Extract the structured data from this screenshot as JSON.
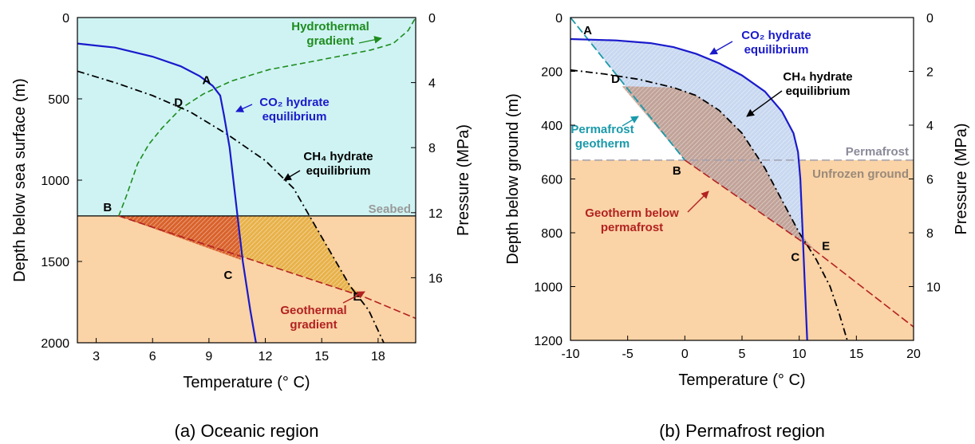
{
  "chart_data": [
    {
      "id": "oceanic",
      "type": "line",
      "caption": "(a) Oceanic region",
      "xlabel": "Temperature (° C)",
      "ylabel": "Depth below sea surface (m)",
      "y2label": "Pressure (MPa)",
      "xlim": [
        2,
        20
      ],
      "ylim": [
        2000,
        0
      ],
      "y2lim": [
        20,
        0
      ],
      "xticks": [
        "3",
        "6",
        "9",
        "12",
        "15",
        "18"
      ],
      "xtick_values": [
        3,
        6,
        9,
        12,
        15,
        18
      ],
      "yticks": [
        "0",
        "500",
        "1000",
        "1500",
        "2000"
      ],
      "ytick_values": [
        0,
        500,
        1000,
        1500,
        2000
      ],
      "y2ticks": [
        "0",
        "4",
        "8",
        "12",
        "16"
      ],
      "y2tick_values": [
        0,
        4,
        8,
        12,
        16
      ],
      "colors": {
        "water": "#cff3f3",
        "sediment": "#fad3a6",
        "co2": "#1a1acc",
        "ch4": "#000000",
        "hydrothermal": "#1e8c1e",
        "geothermal": "#b22222",
        "shade_outer": "#e8b24a",
        "shade_inner": "#d9622b"
      },
      "seabed_depth": 1220,
      "seabed_label": "Seabed",
      "series": [
        {
          "key": "co2",
          "name": "CO₂ hydrate equilibrium",
          "points": [
            [
              2,
              160
            ],
            [
              4,
              185
            ],
            [
              6,
              240
            ],
            [
              7.5,
              300
            ],
            [
              8.5,
              360
            ],
            [
              9.2,
              420
            ],
            [
              9.6,
              480
            ],
            [
              9.8,
              600
            ],
            [
              10.1,
              800
            ],
            [
              10.5,
              1200
            ],
            [
              10.8,
              1500
            ],
            [
              11.2,
              1800
            ],
            [
              11.5,
              2000
            ]
          ]
        },
        {
          "key": "ch4",
          "name": "CH₄ hydrate equilibrium",
          "points": [
            [
              2,
              330
            ],
            [
              4,
              400
            ],
            [
              6,
              480
            ],
            [
              8,
              580
            ],
            [
              10,
              720
            ],
            [
              12,
              880
            ],
            [
              13.5,
              1050
            ],
            [
              14.5,
              1250
            ],
            [
              15.5,
              1450
            ],
            [
              16.5,
              1650
            ],
            [
              17.5,
              1800
            ],
            [
              18.3,
              2000
            ]
          ]
        },
        {
          "key": "hydrothermal",
          "name": "Hydrothermal gradient",
          "points": [
            [
              4.2,
              1220
            ],
            [
              4.6,
              1100
            ],
            [
              5.2,
              900
            ],
            [
              5.8,
              780
            ],
            [
              6.5,
              680
            ],
            [
              7.5,
              560
            ],
            [
              8.7,
              470
            ],
            [
              10.2,
              390
            ],
            [
              12.2,
              320
            ],
            [
              14.5,
              270
            ],
            [
              16.3,
              230
            ],
            [
              17.6,
              200
            ],
            [
              18.8,
              160
            ],
            [
              19.6,
              80
            ],
            [
              20,
              0
            ]
          ]
        },
        {
          "key": "geothermal",
          "name": "Geothermal gradient",
          "points": [
            [
              4.2,
              1220
            ],
            [
              17.3,
              1720
            ],
            [
              20,
              1850
            ]
          ]
        }
      ],
      "points": [
        {
          "label": "A",
          "x": 9.3,
          "y": 430
        },
        {
          "label": "B",
          "x": 4.2,
          "y": 1220
        },
        {
          "label": "C",
          "x": 10.7,
          "y": 1490
        },
        {
          "label": "D",
          "x": 7.8,
          "y": 575
        },
        {
          "label": "E",
          "x": 17.3,
          "y": 1720
        }
      ],
      "annotations": {
        "hydrothermal": "Hydrothermal\ngradient",
        "co2": "CO₂ hydrate\nequilibrium",
        "ch4": "CH₄ hydrate\nequilibrium",
        "geothermal": "Geothermal\ngradient"
      }
    },
    {
      "id": "permafrost",
      "type": "line",
      "caption": "(b) Permafrost region",
      "xlabel": "Temperature (° C)",
      "ylabel": "Depth below ground (m)",
      "y2label": "Pressure (MPa)",
      "xlim": [
        -10,
        20
      ],
      "ylim": [
        1200,
        0
      ],
      "y2lim": [
        12,
        0
      ],
      "xticks": [
        "-10",
        "-5",
        "0",
        "5",
        "10",
        "15",
        "20"
      ],
      "xtick_values": [
        -10,
        -5,
        0,
        5,
        10,
        15,
        20
      ],
      "yticks": [
        "0",
        "200",
        "400",
        "600",
        "800",
        "1000",
        "1200"
      ],
      "ytick_values": [
        0,
        200,
        400,
        600,
        800,
        1000,
        1200
      ],
      "y2ticks": [
        "0",
        "2",
        "4",
        "6",
        "8",
        "10"
      ],
      "y2tick_values": [
        0,
        2,
        4,
        6,
        8,
        10
      ],
      "colors": {
        "sediment": "#fad3a6",
        "co2": "#1a1acc",
        "ch4": "#000000",
        "permafrost_geotherm": "#1a9aaa",
        "geotherm": "#b22222",
        "boundary": "#a0a0b0",
        "shade_blue": "#c8d8f0",
        "shade_brown": "#c09a8a"
      },
      "permafrost_base": 530,
      "permafrost_label": "Permafrost",
      "unfrozen_label": "Unfrozen ground",
      "series": [
        {
          "key": "co2",
          "name": "CO₂ hydrate equilibrium",
          "points": [
            [
              -10,
              80
            ],
            [
              -6,
              85
            ],
            [
              -3,
              95
            ],
            [
              -1,
              110
            ],
            [
              1,
              135
            ],
            [
              3,
              170
            ],
            [
              5,
              215
            ],
            [
              7,
              275
            ],
            [
              8.5,
              350
            ],
            [
              9.5,
              430
            ],
            [
              9.9,
              500
            ],
            [
              10.1,
              600
            ],
            [
              10.3,
              800
            ],
            [
              10.5,
              1000
            ],
            [
              10.7,
              1200
            ]
          ]
        },
        {
          "key": "ch4",
          "name": "CH₄ hydrate equilibrium",
          "points": [
            [
              -10,
              195
            ],
            [
              -7,
              210
            ],
            [
              -4,
              230
            ],
            [
              -1,
              260
            ],
            [
              1,
              290
            ],
            [
              3,
              345
            ],
            [
              5,
              430
            ],
            [
              7,
              560
            ],
            [
              8.5,
              680
            ],
            [
              10,
              800
            ],
            [
              11.5,
              900
            ],
            [
              12.7,
              1000
            ],
            [
              13.5,
              1100
            ],
            [
              14.2,
              1200
            ]
          ]
        },
        {
          "key": "permafrost_geotherm",
          "name": "Permafrost geotherm",
          "points": [
            [
              -10,
              0
            ],
            [
              0,
              530
            ]
          ]
        },
        {
          "key": "geotherm",
          "name": "Geotherm below permafrost",
          "points": [
            [
              0,
              530
            ],
            [
              11.5,
              870
            ],
            [
              20,
              1150
            ]
          ]
        }
      ],
      "points": [
        {
          "label": "A",
          "x": -8.5,
          "y": 80
        },
        {
          "label": "B",
          "x": 0,
          "y": 530
        },
        {
          "label": "C",
          "x": 10.5,
          "y": 840
        },
        {
          "label": "D",
          "x": -5.5,
          "y": 255
        },
        {
          "label": "E",
          "x": 11.5,
          "y": 870
        }
      ],
      "annotations": {
        "co2": "CO₂ hydrate\nequilibrium",
        "ch4": "CH₄ hydrate\nequilibrium",
        "permafrost_geotherm": "Permafrost\ngeotherm",
        "geotherm": "Geotherm below\npermafrost"
      }
    }
  ]
}
